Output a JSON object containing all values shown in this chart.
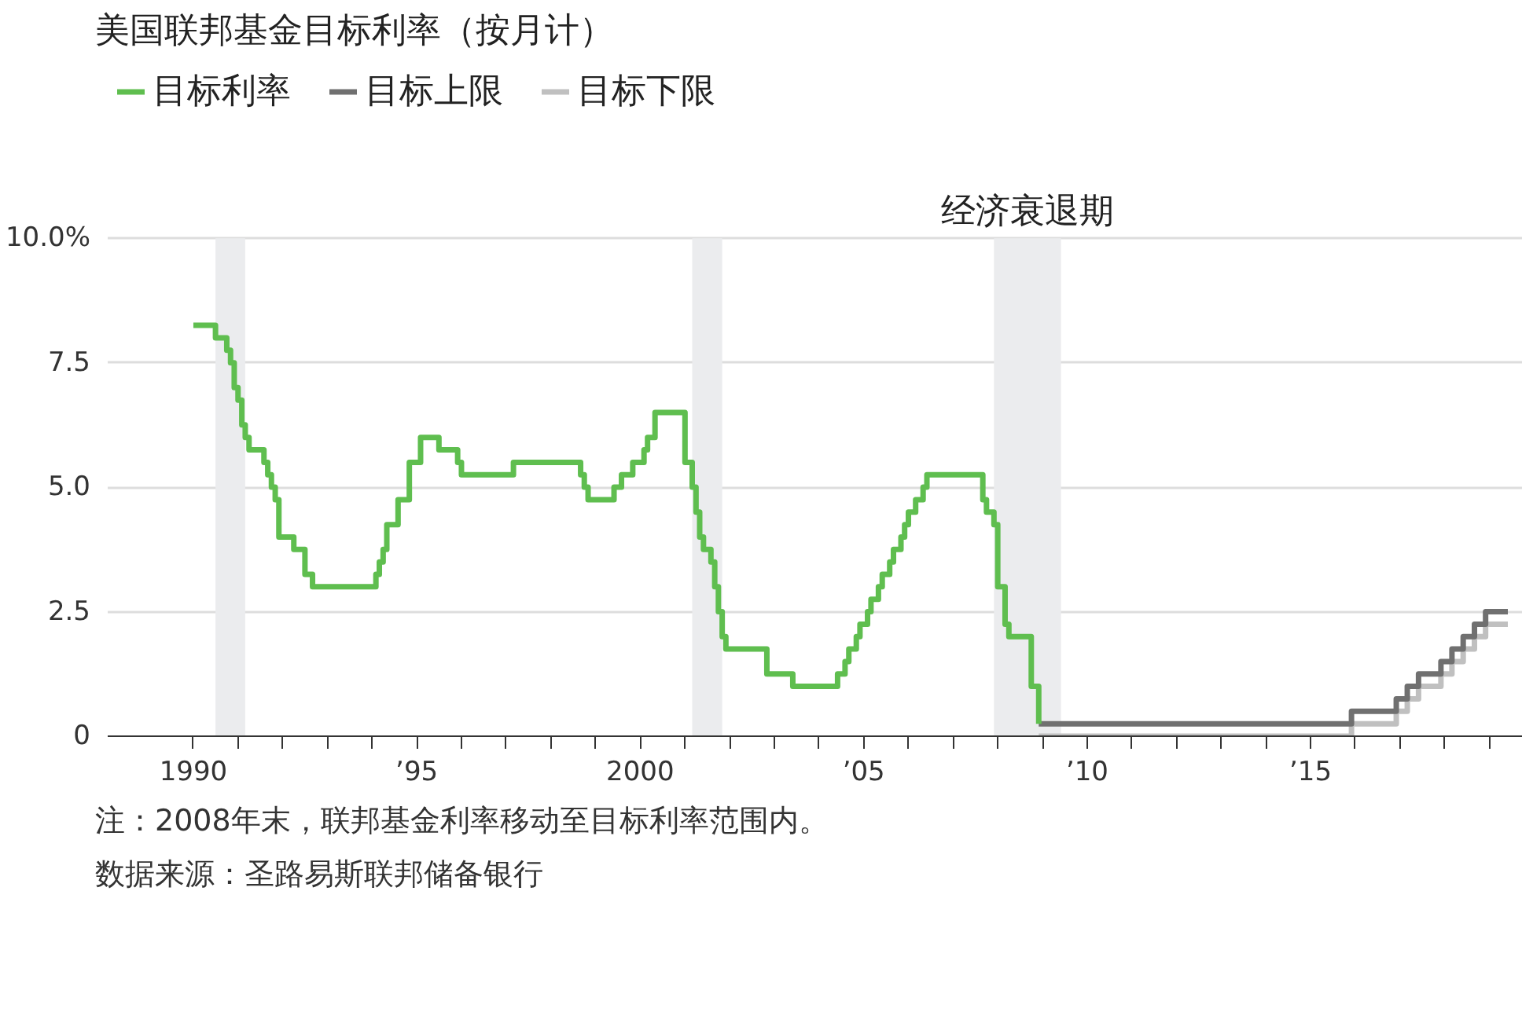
{
  "chart_data": {
    "type": "step",
    "title": "美国联邦基金目标利率（按月计）",
    "legend": "top left",
    "grid": "y",
    "xlim": [
      "1988-02",
      "2019-10"
    ],
    "xticks": [
      {
        "value": "1990",
        "label": "1990"
      },
      {
        "value": "1991",
        "label": null
      },
      {
        "value": "1992",
        "label": null
      },
      {
        "value": "1993",
        "label": null
      },
      {
        "value": "1994",
        "label": null
      },
      {
        "value": "1995",
        "label": "’95"
      },
      {
        "value": "1996",
        "label": null
      },
      {
        "value": "1997",
        "label": null
      },
      {
        "value": "1998",
        "label": null
      },
      {
        "value": "1999",
        "label": null
      },
      {
        "value": "2000",
        "label": "2000"
      },
      {
        "value": "2001",
        "label": null
      },
      {
        "value": "2002",
        "label": null
      },
      {
        "value": "2003",
        "label": null
      },
      {
        "value": "2004",
        "label": null
      },
      {
        "value": "2005",
        "label": "’05"
      },
      {
        "value": "2006",
        "label": null
      },
      {
        "value": "2007",
        "label": null
      },
      {
        "value": "2008",
        "label": null
      },
      {
        "value": "2009",
        "label": null
      },
      {
        "value": "2010",
        "label": "’10"
      },
      {
        "value": "2011",
        "label": null
      },
      {
        "value": "2012",
        "label": null
      },
      {
        "value": "2013",
        "label": null
      },
      {
        "value": "2014",
        "label": null
      },
      {
        "value": "2015",
        "label": "’15"
      },
      {
        "value": "2016",
        "label": null
      },
      {
        "value": "2017",
        "label": null
      },
      {
        "value": "2018",
        "label": null
      },
      {
        "value": "2019",
        "label": null
      }
    ],
    "ylim": [
      0,
      10
    ],
    "yticks": [
      0,
      2.5,
      {
        "value": 5,
        "label": "5.0"
      },
      7.5,
      {
        "value": 10,
        "label": "10.0%"
      }
    ],
    "bands": [
      {
        "axis": "x",
        "from": "1990-07",
        "to": "1991-03",
        "color": "#ebecee"
      },
      {
        "axis": "x",
        "from": "2001-03",
        "to": "2001-11",
        "color": "#ebecee"
      },
      {
        "axis": "x",
        "from": "2007-12",
        "to": "2009-06",
        "color": "#ebecee",
        "label": "经济衰退期"
      }
    ],
    "series": [
      {
        "name": "目标利率",
        "color": "#5fbe4f",
        "x": [
          "1990-01",
          "1990-07",
          "1990-10",
          "1990-11",
          "1990-12",
          "1991-01",
          "1991-02",
          "1991-03",
          "1991-04",
          "1991-08",
          "1991-09",
          "1991-10",
          "1991-11",
          "1991-12",
          "1992-04",
          "1992-07",
          "1992-09",
          "1994-02",
          "1994-03",
          "1994-04",
          "1994-05",
          "1994-08",
          "1994-11",
          "1995-02",
          "1995-07",
          "1995-12",
          "1996-01",
          "1997-03",
          "1998-09",
          "1998-10",
          "1998-11",
          "1999-06",
          "1999-08",
          "1999-11",
          "2000-02",
          "2000-03",
          "2000-05",
          "2001-01",
          "2001-03",
          "2001-04",
          "2001-05",
          "2001-06",
          "2001-08",
          "2001-09",
          "2001-10",
          "2001-11",
          "2001-12",
          "2002-11",
          "2003-06",
          "2004-06",
          "2004-08",
          "2004-09",
          "2004-11",
          "2004-12",
          "2005-02",
          "2005-03",
          "2005-05",
          "2005-06",
          "2005-08",
          "2005-09",
          "2005-11",
          "2005-12",
          "2006-01",
          "2006-03",
          "2006-05",
          "2006-06",
          "2007-09",
          "2007-10",
          "2007-12",
          "2008-01",
          "2008-03",
          "2008-04",
          "2008-10",
          "2008-12"
        ],
        "values": [
          8.25,
          8.0,
          7.75,
          7.5,
          7.0,
          6.75,
          6.25,
          6.0,
          5.75,
          5.5,
          5.25,
          5.0,
          4.75,
          4.0,
          3.75,
          3.25,
          3.0,
          3.25,
          3.5,
          3.75,
          4.25,
          4.75,
          5.5,
          6.0,
          5.75,
          5.5,
          5.25,
          5.5,
          5.25,
          5.0,
          4.75,
          5.0,
          5.25,
          5.5,
          5.75,
          6.0,
          6.5,
          5.5,
          5.0,
          4.5,
          4.0,
          3.75,
          3.5,
          3.0,
          2.5,
          2.0,
          1.75,
          1.25,
          1.0,
          1.25,
          1.5,
          1.75,
          2.0,
          2.25,
          2.5,
          2.75,
          3.0,
          3.25,
          3.5,
          3.75,
          4.0,
          4.25,
          4.5,
          4.75,
          5.0,
          5.25,
          4.75,
          4.5,
          4.25,
          3.0,
          2.25,
          2.0,
          1.0,
          0.25
        ]
      },
      {
        "name": "目标上限",
        "color": "#707070",
        "x": [
          "2008-12",
          "2015-12",
          "2016-12",
          "2017-03",
          "2017-06",
          "2017-12",
          "2018-03",
          "2018-06",
          "2018-09",
          "2018-12",
          "2019-06"
        ],
        "values": [
          0.25,
          0.5,
          0.75,
          1.0,
          1.25,
          1.5,
          1.75,
          2.0,
          2.25,
          2.5,
          2.5
        ]
      },
      {
        "name": "目标下限",
        "color": "#c0c0c0",
        "x": [
          "2008-12",
          "2015-12",
          "2016-12",
          "2017-03",
          "2017-06",
          "2017-12",
          "2018-03",
          "2018-06",
          "2018-09",
          "2018-12",
          "2019-06"
        ],
        "values": [
          0,
          0.25,
          0.5,
          0.75,
          1.0,
          1.25,
          1.5,
          1.75,
          2.0,
          2.25,
          2.25
        ]
      }
    ],
    "annotations": [
      "注：2008年末，联邦基金利率移动至目标利率范围内。",
      "数据来源：圣路易斯联邦储备银行"
    ]
  }
}
